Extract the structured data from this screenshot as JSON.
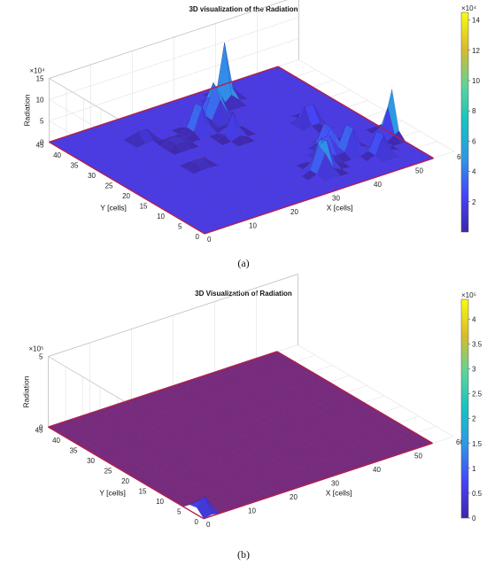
{
  "chart_data": [
    {
      "type": "surface3d",
      "panel_label": "(a)",
      "title": "3D visualization of the Radiation",
      "xlabel": "X [cells]",
      "ylabel": "Y [cells]",
      "zlabel": "Radiation",
      "z_exponent": "×10⁴",
      "x_ticks": [
        "0",
        "10",
        "20",
        "30",
        "40",
        "50",
        "60"
      ],
      "y_ticks": [
        "0",
        "5",
        "10",
        "15",
        "20",
        "25",
        "30",
        "35",
        "40",
        "45"
      ],
      "z_ticks": [
        "0",
        "5",
        "10",
        "15"
      ],
      "xlim": [
        0,
        60
      ],
      "ylim": [
        0,
        45
      ],
      "zlim": [
        0,
        15
      ],
      "colorbar": {
        "exponent": "×10⁴",
        "ticks": [
          "2",
          "4",
          "6",
          "8",
          "10",
          "12",
          "14"
        ],
        "min": 0,
        "max": 14.5
      },
      "colormap": [
        "#3e26a8",
        "#4743f8",
        "#2f96e6",
        "#16c2c2",
        "#5cd49a",
        "#d9bb2a",
        "#f9fb0e"
      ],
      "surface": {
        "x_cells": 55,
        "y_cells": 45,
        "base_color": "#4b3be6"
      },
      "peaks": [
        {
          "x": 30,
          "y": 28,
          "z": 5.5
        },
        {
          "x": 26,
          "y": 33,
          "z": 9.5
        },
        {
          "x": 32,
          "y": 35,
          "z": 7.5
        },
        {
          "x": 33,
          "y": 37,
          "z": 8.0
        },
        {
          "x": 38,
          "y": 40,
          "z": 13.5
        },
        {
          "x": 45,
          "y": 24,
          "z": 6.5
        },
        {
          "x": 42,
          "y": 15,
          "z": 7.5
        },
        {
          "x": 39,
          "y": 12,
          "z": 7.0
        },
        {
          "x": 36,
          "y": 9,
          "z": 9.0
        },
        {
          "x": 34,
          "y": 7,
          "z": 8.0
        },
        {
          "x": 44,
          "y": 11,
          "z": 9.0
        },
        {
          "x": 48,
          "y": 7,
          "z": 7.5
        },
        {
          "x": 55,
          "y": 12,
          "z": 10.5
        },
        {
          "x": 15,
          "y": 36,
          "z": 3.5
        },
        {
          "x": 19,
          "y": 31,
          "z": 2.5
        },
        {
          "x": 17,
          "y": 22,
          "z": 2.0
        }
      ],
      "walls_color": "#b0204e"
    },
    {
      "type": "surface3d",
      "panel_label": "(b)",
      "title": "3D Visualization of Radiation",
      "xlabel": "X [cells]",
      "ylabel": "Y [cells]",
      "zlabel": "Radiation",
      "z_exponent": "×10⁵",
      "x_ticks": [
        "0",
        "10",
        "20",
        "30",
        "40",
        "50",
        "60"
      ],
      "y_ticks": [
        "0",
        "5",
        "10",
        "15",
        "20",
        "25",
        "30",
        "35",
        "40",
        "45"
      ],
      "z_ticks": [
        "0",
        "5"
      ],
      "xlim": [
        0,
        60
      ],
      "ylim": [
        0,
        45
      ],
      "zlim": [
        0,
        5
      ],
      "colorbar": {
        "exponent": "×10⁵",
        "ticks": [
          "0",
          "0.5",
          "1",
          "1.5",
          "2",
          "2.5",
          "3",
          "3.5",
          "4"
        ],
        "min": 0,
        "max": 4.4
      },
      "colormap": [
        "#3e26a8",
        "#4743f8",
        "#2f96e6",
        "#16c2c2",
        "#5cd49a",
        "#d9bb2a",
        "#f9fb0e"
      ],
      "surface": {
        "x_cells": 55,
        "y_cells": 45,
        "base_color": "#7a2a7c"
      },
      "peaks": [
        {
          "x": 1,
          "y": 3,
          "z": 1.0
        },
        {
          "x": 2,
          "y": 2,
          "z": 0.7
        }
      ],
      "walls_color": "#b0204e"
    }
  ]
}
